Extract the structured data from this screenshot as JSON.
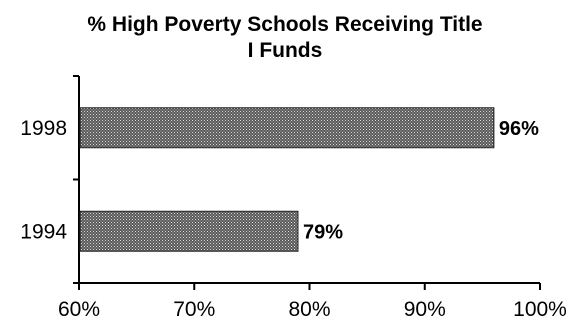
{
  "chart_data": {
    "type": "bar",
    "orientation": "horizontal",
    "title_lines": [
      "% High Poverty Schools Receiving Title",
      "I Funds"
    ],
    "categories": [
      "1998",
      "1994"
    ],
    "values": [
      96,
      79
    ],
    "value_labels": [
      "96%",
      "79%"
    ],
    "xlabel": "",
    "ylabel": "",
    "xlim": [
      60,
      100
    ],
    "xticks": [
      60,
      70,
      80,
      90,
      100
    ],
    "xtick_labels": [
      "60%",
      "70%",
      "80%",
      "90%",
      "100%"
    ],
    "grid": false,
    "legend": "none",
    "bar_fill": "stippled dark gray"
  }
}
